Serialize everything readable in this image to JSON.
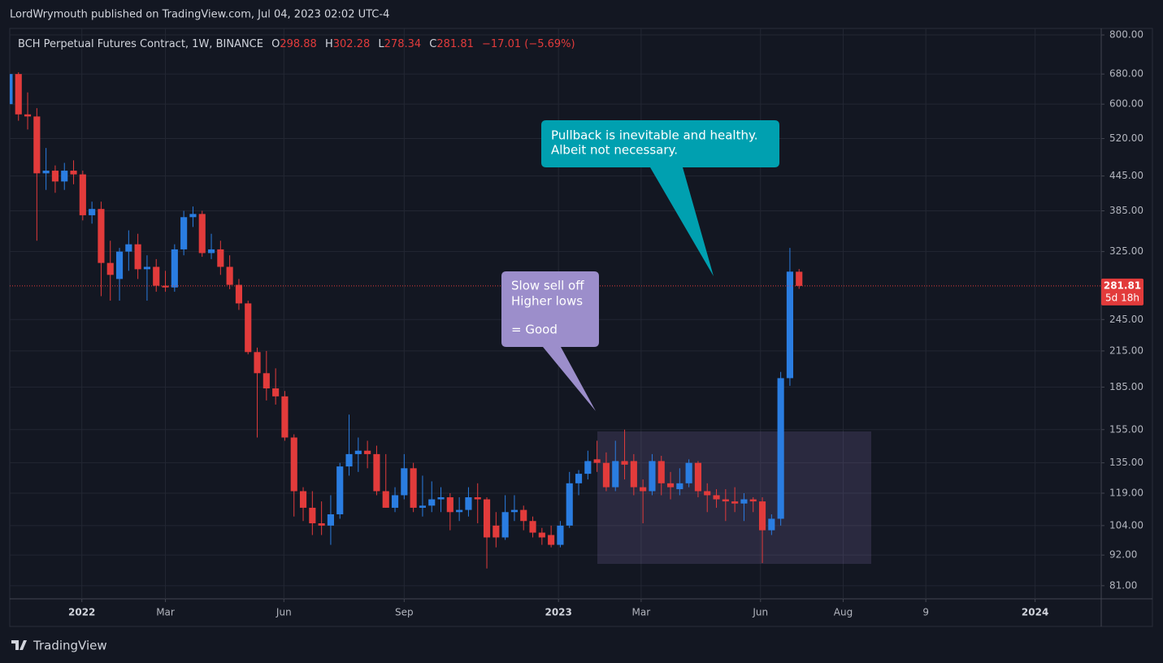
{
  "header": {
    "publisher": "LordWrymouth published on TradingView.com, Jul 04, 2023 02:02 UTC-4"
  },
  "chart_data": {
    "type": "candlestick",
    "title": "BCH Perpetual Futures Contract, 1W, BINANCE",
    "legend_labels": {
      "open": "O",
      "high": "H",
      "low": "L",
      "close": "C"
    },
    "change": "−17.01 (−5.69%)",
    "countdown": "5d 18h",
    "up_color": "#2a7de1",
    "down_color": "#e23b3b",
    "log_scale": true,
    "grid": true,
    "open": [
      600,
      680,
      575,
      570,
      450,
      455,
      435,
      455,
      448,
      378,
      388,
      310,
      290,
      325,
      335,
      302,
      305,
      282,
      280,
      328,
      375,
      380,
      323,
      328,
      305,
      283,
      262,
      214,
      196,
      184,
      178,
      150,
      120,
      112,
      105,
      104,
      109,
      133,
      140,
      142,
      140,
      120,
      112,
      118,
      132,
      112,
      113,
      116,
      117,
      110,
      111,
      117,
      116,
      104,
      99,
      110,
      111,
      106,
      101,
      100,
      96,
      104,
      124,
      129,
      137,
      135,
      122,
      136,
      136,
      122,
      120,
      136,
      124,
      121,
      124,
      135,
      120,
      118,
      116,
      115,
      114,
      116,
      115,
      102,
      107,
      192,
      298.88
    ],
    "high": [
      690,
      685,
      630,
      590,
      500,
      465,
      470,
      475,
      455,
      400,
      400,
      340,
      330,
      355,
      350,
      320,
      315,
      300,
      335,
      385,
      392,
      385,
      350,
      340,
      320,
      290,
      265,
      218,
      215,
      200,
      182,
      152,
      122,
      120,
      115,
      118,
      135,
      165,
      150,
      148,
      145,
      140,
      122,
      140,
      135,
      128,
      125,
      122,
      119,
      117,
      122,
      124,
      117,
      110,
      118,
      118,
      113,
      108,
      103,
      104,
      106,
      130,
      131,
      142,
      148,
      141,
      148,
      155,
      140,
      126,
      140,
      139,
      130,
      132,
      137,
      136,
      124,
      121,
      121,
      122,
      119,
      117,
      117,
      109,
      197,
      330,
      302.28
    ],
    "low": [
      590,
      560,
      540,
      340,
      420,
      415,
      420,
      430,
      370,
      365,
      270,
      265,
      265,
      300,
      290,
      265,
      275,
      275,
      275,
      320,
      360,
      318,
      315,
      295,
      278,
      255,
      212,
      150,
      175,
      172,
      148,
      108,
      106,
      100,
      100,
      96,
      107,
      128,
      130,
      132,
      118,
      112,
      110,
      116,
      110,
      108,
      110,
      110,
      102,
      106,
      108,
      105,
      87,
      95,
      98,
      106,
      102,
      99,
      96,
      95,
      95,
      103,
      118,
      126,
      130,
      120,
      120,
      126,
      118,
      105,
      118,
      118,
      116,
      118,
      122,
      117,
      110,
      112,
      106,
      110,
      106,
      110,
      89,
      100,
      104,
      186,
      278.34
    ],
    "close": [
      680,
      575,
      570,
      450,
      455,
      435,
      455,
      448,
      378,
      388,
      310,
      295,
      325,
      335,
      302,
      305,
      282,
      280,
      328,
      375,
      380,
      323,
      328,
      305,
      283,
      262,
      214,
      196,
      184,
      178,
      150,
      120,
      112,
      105,
      104,
      109,
      133,
      140,
      142,
      140,
      120,
      112,
      118,
      132,
      112,
      113,
      116,
      117,
      110,
      111,
      117,
      116,
      99,
      99,
      110,
      111,
      106,
      101,
      99,
      96,
      104,
      124,
      129,
      136,
      135,
      122,
      136,
      134,
      122,
      120,
      136,
      124,
      122,
      124,
      135,
      120,
      118,
      116,
      115,
      114,
      116,
      115,
      102,
      107,
      192,
      299,
      281.81
    ],
    "xlim": [
      0.05,
      118.9
    ],
    "xticks": [
      {
        "value": 7.9,
        "label": "2022"
      },
      {
        "value": 17.0,
        "label": "Mar"
      },
      {
        "value": 29.9,
        "label": "Jun"
      },
      {
        "value": 43.0,
        "label": "Sep"
      },
      {
        "value": 59.8,
        "label": "2023"
      },
      {
        "value": 68.8,
        "label": "Mar"
      },
      {
        "value": 81.8,
        "label": "Jun"
      },
      {
        "value": 90.8,
        "label": "Aug"
      },
      {
        "value": 99.8,
        "label": "9"
      },
      {
        "value": 111.7,
        "label": "2024"
      }
    ],
    "ylim": [
      76.7,
      822
    ],
    "yticks": [
      {
        "value": 800,
        "label": "800.00"
      },
      {
        "value": 680,
        "label": "680.00"
      },
      {
        "value": 600,
        "label": "600.00"
      },
      {
        "value": 520,
        "label": "520.00"
      },
      {
        "value": 445,
        "label": "445.00"
      },
      {
        "value": 385,
        "label": "385.00"
      },
      {
        "value": 325,
        "label": "325.00"
      },
      {
        "value": 245,
        "label": "245.00"
      },
      {
        "value": 215,
        "label": "215.00"
      },
      {
        "value": 185,
        "label": "185.00"
      },
      {
        "value": 155,
        "label": "155.00"
      },
      {
        "value": 135,
        "label": "135.00"
      },
      {
        "value": 119,
        "label": "119.00"
      },
      {
        "value": 104,
        "label": "104.00"
      },
      {
        "value": 92,
        "label": "92.00"
      },
      {
        "value": 81,
        "label": "81.00"
      }
    ],
    "annotations": [
      {
        "lines": [
          "Pullback is inevitable and healthy.",
          "Albeit not necessary."
        ]
      },
      {
        "lines": [
          "Slow sell off",
          "Higher lows",
          "= Good"
        ]
      }
    ]
  },
  "footer": {
    "brand": "TradingView"
  }
}
